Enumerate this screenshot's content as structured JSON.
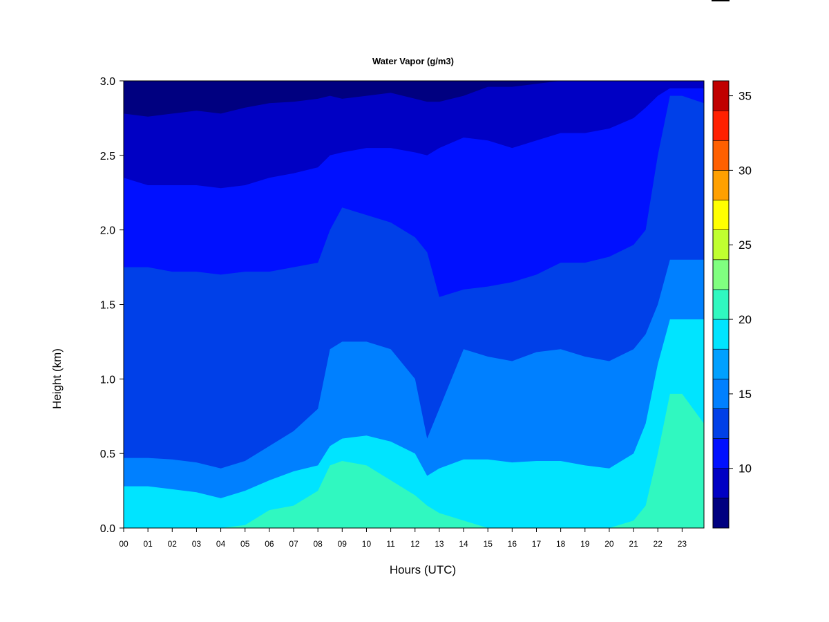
{
  "chart_data": {
    "type": "heatmap",
    "title": "Water Vapor (g/m3)",
    "xlabel": "Hours (UTC)",
    "ylabel": "Height (km)",
    "xlim": [
      0,
      23.9
    ],
    "ylim": [
      0,
      3
    ],
    "x_ticks": [
      "00",
      "01",
      "02",
      "03",
      "04",
      "05",
      "06",
      "07",
      "08",
      "09",
      "10",
      "11",
      "12",
      "13",
      "14",
      "15",
      "16",
      "17",
      "18",
      "19",
      "20",
      "21",
      "22",
      "23"
    ],
    "y_ticks": [
      "0.0",
      "0.5",
      "1.0",
      "1.5",
      "2.0",
      "2.5",
      "3.0"
    ],
    "colorbar": {
      "min": 6,
      "max": 36,
      "boundaries": [
        6,
        8,
        10,
        12,
        14,
        16,
        18,
        20,
        22,
        24,
        26,
        28,
        30,
        32,
        34,
        36
      ],
      "colors": [
        "#000080",
        "#0000c4",
        "#0010ff",
        "#0040e8",
        "#0080ff",
        "#00a0ff",
        "#00e4ff",
        "#30f8c0",
        "#80ff80",
        "#c0ff30",
        "#ffff00",
        "#ffa000",
        "#ff6000",
        "#ff2000",
        "#c00000",
        "#800000"
      ],
      "tick_values": [
        10,
        15,
        20,
        25,
        30,
        35
      ],
      "tick_labels": [
        "10",
        "15",
        "20",
        "25",
        "30",
        "35"
      ]
    },
    "layers_km": {
      "hours": [
        0,
        1,
        2,
        3,
        4,
        5,
        6,
        7,
        8,
        8.5,
        9,
        10,
        11,
        12,
        12.5,
        13,
        14,
        15,
        16,
        17,
        18,
        19,
        20,
        21,
        21.5,
        22,
        22.5,
        23,
        23.9
      ],
      "top_8_10": [
        2.78,
        2.76,
        2.78,
        2.8,
        2.78,
        2.82,
        2.85,
        2.86,
        2.88,
        2.9,
        2.88,
        2.9,
        2.92,
        2.88,
        2.86,
        2.86,
        2.9,
        2.96,
        2.96,
        2.98,
        3.0,
        3.0,
        3.0,
        3.0,
        3.0,
        3.0,
        3.0,
        3.0,
        3.0
      ],
      "top_10_12": [
        2.35,
        2.3,
        2.3,
        2.3,
        2.28,
        2.3,
        2.35,
        2.38,
        2.42,
        2.5,
        2.52,
        2.55,
        2.55,
        2.52,
        2.5,
        2.55,
        2.62,
        2.6,
        2.55,
        2.6,
        2.65,
        2.65,
        2.68,
        2.75,
        2.82,
        2.9,
        2.95,
        2.95,
        2.95
      ],
      "top_12_14": [
        1.75,
        1.75,
        1.72,
        1.72,
        1.7,
        1.72,
        1.72,
        1.75,
        1.78,
        2.0,
        2.15,
        2.1,
        2.05,
        1.95,
        1.85,
        1.55,
        1.6,
        1.62,
        1.65,
        1.7,
        1.78,
        1.78,
        1.82,
        1.9,
        2.0,
        2.5,
        2.9,
        2.9,
        2.85
      ],
      "top_14_16": [
        0.47,
        0.47,
        0.46,
        0.44,
        0.4,
        0.45,
        0.55,
        0.65,
        0.8,
        1.2,
        1.25,
        1.25,
        1.2,
        1.0,
        0.6,
        0.8,
        1.2,
        1.15,
        1.12,
        1.18,
        1.2,
        1.15,
        1.12,
        1.2,
        1.3,
        1.5,
        1.8,
        1.8,
        1.8
      ],
      "top_16_18": [
        0.28,
        0.28,
        0.26,
        0.24,
        0.2,
        0.25,
        0.32,
        0.38,
        0.42,
        0.55,
        0.6,
        0.62,
        0.58,
        0.5,
        0.35,
        0.4,
        0.46,
        0.46,
        0.44,
        0.45,
        0.45,
        0.42,
        0.4,
        0.5,
        0.7,
        1.1,
        1.4,
        1.4,
        1.4
      ],
      "top_18_20": [
        0,
        0,
        0,
        0,
        0,
        0.02,
        0.12,
        0.15,
        0.25,
        0.42,
        0.45,
        0.42,
        0.32,
        0.22,
        0.15,
        0.1,
        0.05,
        0,
        0,
        0,
        0,
        0,
        0,
        0.05,
        0.15,
        0.5,
        0.9,
        0.9,
        0.7
      ]
    }
  }
}
